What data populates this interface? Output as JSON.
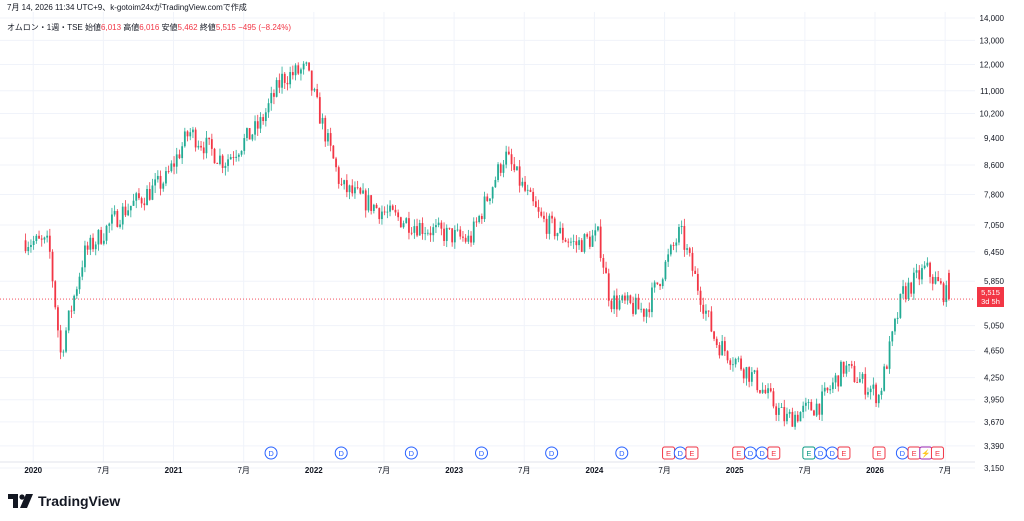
{
  "header": {
    "caption": "7月 14, 2026 11:34 UTC+9、k-gotoim24xがTradingView.comで作成"
  },
  "legend": {
    "symbol": "オムロン・1週・TSE",
    "open_label": "始値",
    "open_value": "6,013",
    "high_label": "高値",
    "high_value": "6,016",
    "low_label": "安値",
    "low_value": "5,462",
    "close_label": "終値",
    "close_value": "5,515",
    "change": "−495 (−8.24%)"
  },
  "current_price": {
    "value": "5,515",
    "countdown": "3d 5h"
  },
  "logo": {
    "name": "TradingView"
  },
  "colors": {
    "up": "#22ab94",
    "down": "#f23645",
    "grid": "#f0f3fa",
    "dividend": "#2962ff",
    "earnings": "#f23645",
    "earnings_alt": "#089981",
    "split": "#9c27b0"
  },
  "chart_data": {
    "type": "candlestick",
    "y_scale": "log",
    "ylim": [
      3150,
      14000
    ],
    "y_ticks": [
      "14,000",
      "13,000",
      "12,000",
      "11,000",
      "10,200",
      "9,400",
      "8,600",
      "7,800",
      "7,050",
      "6,450",
      "5,850",
      "5,050",
      "4,650",
      "4,250",
      "3,950",
      "3,670",
      "3,390",
      "3,150"
    ],
    "x_ticks": [
      "2020",
      "7月",
      "2021",
      "7月",
      "2022",
      "7月",
      "2023",
      "7月",
      "2024",
      "7月",
      "2025",
      "7月",
      "2026",
      "7月"
    ],
    "anchor_points": [
      {
        "date": "2019-12",
        "close": 6700
      },
      {
        "date": "2020-02",
        "close": 6600
      },
      {
        "date": "2020-03",
        "close": 4600
      },
      {
        "date": "2020-05",
        "close": 6400
      },
      {
        "date": "2020-08",
        "close": 7300
      },
      {
        "date": "2020-12",
        "close": 8200
      },
      {
        "date": "2021-02",
        "close": 9600
      },
      {
        "date": "2021-05",
        "close": 8700
      },
      {
        "date": "2021-08",
        "close": 9800
      },
      {
        "date": "2021-10",
        "close": 11500
      },
      {
        "date": "2021-12",
        "close": 11800
      },
      {
        "date": "2022-03",
        "close": 8000
      },
      {
        "date": "2022-07",
        "close": 7300
      },
      {
        "date": "2022-11",
        "close": 6900
      },
      {
        "date": "2023-02",
        "close": 6700
      },
      {
        "date": "2023-05",
        "close": 8900
      },
      {
        "date": "2023-08",
        "close": 7200
      },
      {
        "date": "2023-11",
        "close": 6600
      },
      {
        "date": "2024-01",
        "close": 6800
      },
      {
        "date": "2024-02",
        "close": 5500
      },
      {
        "date": "2024-05",
        "close": 5300
      },
      {
        "date": "2024-08",
        "close": 6900
      },
      {
        "date": "2024-11",
        "close": 4800
      },
      {
        "date": "2025-02",
        "close": 4300
      },
      {
        "date": "2025-05",
        "close": 3700
      },
      {
        "date": "2025-08",
        "close": 3900
      },
      {
        "date": "2025-10",
        "close": 4400
      },
      {
        "date": "2026-01",
        "close": 4000
      },
      {
        "date": "2026-03",
        "close": 5600
      },
      {
        "date": "2026-05",
        "close": 6100
      },
      {
        "date": "2026-07",
        "close": 5515
      }
    ],
    "events": [
      {
        "type": "D",
        "date": "2021-09"
      },
      {
        "type": "D",
        "date": "2022-03"
      },
      {
        "type": "D",
        "date": "2022-09"
      },
      {
        "type": "D",
        "date": "2023-03"
      },
      {
        "type": "D",
        "date": "2023-09"
      },
      {
        "type": "D",
        "date": "2024-03"
      },
      {
        "type": "E",
        "date": "2024-07"
      },
      {
        "type": "D",
        "date": "2024-08"
      },
      {
        "type": "E",
        "date": "2024-09"
      },
      {
        "type": "E",
        "date": "2025-01"
      },
      {
        "type": "D",
        "date": "2025-02"
      },
      {
        "type": "D",
        "date": "2025-03"
      },
      {
        "type": "E",
        "date": "2025-04"
      },
      {
        "type": "E",
        "date": "2025-07"
      },
      {
        "type": "D",
        "date": "2025-08"
      },
      {
        "type": "D",
        "date": "2025-09"
      },
      {
        "type": "E",
        "date": "2025-10"
      },
      {
        "type": "E",
        "date": "2026-01"
      },
      {
        "type": "D",
        "date": "2026-03"
      },
      {
        "type": "E",
        "date": "2026-04"
      },
      {
        "type": "S",
        "date": "2026-05"
      },
      {
        "type": "E",
        "date": "2026-06"
      }
    ]
  }
}
